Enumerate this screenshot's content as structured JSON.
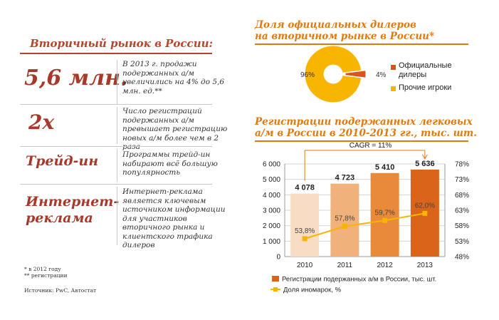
{
  "left": {
    "title": "Вторичный рынок в России:",
    "stats": [
      {
        "value": "5,6 млн.",
        "text": "В 2013 г. продажи подержанных а/м увеличились на 4% до 5,6 млн. ед.**"
      },
      {
        "value": "2х",
        "text": "Число регистраций подержанных а/м превышает регистрацию новых а/м более чем в 2 раза"
      },
      {
        "value": "Трейд-ин",
        "text": "Программы трейд-ин набирают всё большую популярность"
      },
      {
        "value_line1": "Интернет-",
        "value_line2": "реклама",
        "text": "Интернет-реклама является ключевым источником информации для участников вторичного рынка и клиентского трафика дилеров"
      }
    ],
    "footnotes": [
      "* в 2012 году",
      "** регистрации"
    ],
    "source": "Источник: PwC, Автостат"
  },
  "donut": {
    "title_line1": "Доля официальных дилеров",
    "title_line2": "на вторичном рынке в России*"
  },
  "bars": {
    "title_line1": "Регистрации подержанных легковых",
    "title_line2": "а/м в России в 2010-2013 гг., тыс. шт.",
    "cagr_label": "CAGR = 11%"
  },
  "colors": {
    "accent_red": "#a8392a",
    "accent_orange": "#e07a10",
    "donut_main": "#f7b500",
    "donut_small": "#d9531e",
    "bar_colors": [
      "#f8dcc4",
      "#f0b27a",
      "#e88a3a",
      "#d9641a"
    ],
    "line_color": "#f7b500"
  },
  "chart_data": [
    {
      "type": "pie",
      "donut": true,
      "labels": [
        "Официальные дилеры",
        "Прочие игроки"
      ],
      "values": [
        4,
        96
      ],
      "value_labels": [
        "4%",
        "96%"
      ]
    },
    {
      "type": "bar",
      "categories": [
        "2010",
        "2011",
        "2012",
        "2013"
      ],
      "series": [
        {
          "name": "Регистрации подержанных а/м в России, тыс. шт.",
          "values": [
            4078,
            4723,
            5410,
            5636
          ],
          "labels": [
            "4 078",
            "4 723",
            "5 410",
            "5 636"
          ],
          "axis": "left"
        },
        {
          "name": "Доля иномарок, %",
          "type": "line",
          "values": [
            53.8,
            57.8,
            59.7,
            62.0
          ],
          "labels": [
            "53,8%",
            "57,8%",
            "59,7%",
            "62,0%"
          ],
          "axis": "right"
        }
      ],
      "ylim": [
        0,
        6000
      ],
      "yticks": [
        0,
        1000,
        2000,
        3000,
        4000,
        5000,
        6000
      ],
      "ytick_labels": [
        "0",
        "1 000",
        "2 000",
        "3 000",
        "4 000",
        "5 000",
        "6 000"
      ],
      "y2lim": [
        48,
        78
      ],
      "y2ticks": [
        48,
        53,
        58,
        63,
        68,
        73,
        78
      ],
      "y2tick_labels": [
        "48%",
        "53%",
        "58%",
        "63%",
        "68%",
        "73%",
        "78%"
      ],
      "legend_position": "bottom"
    }
  ]
}
